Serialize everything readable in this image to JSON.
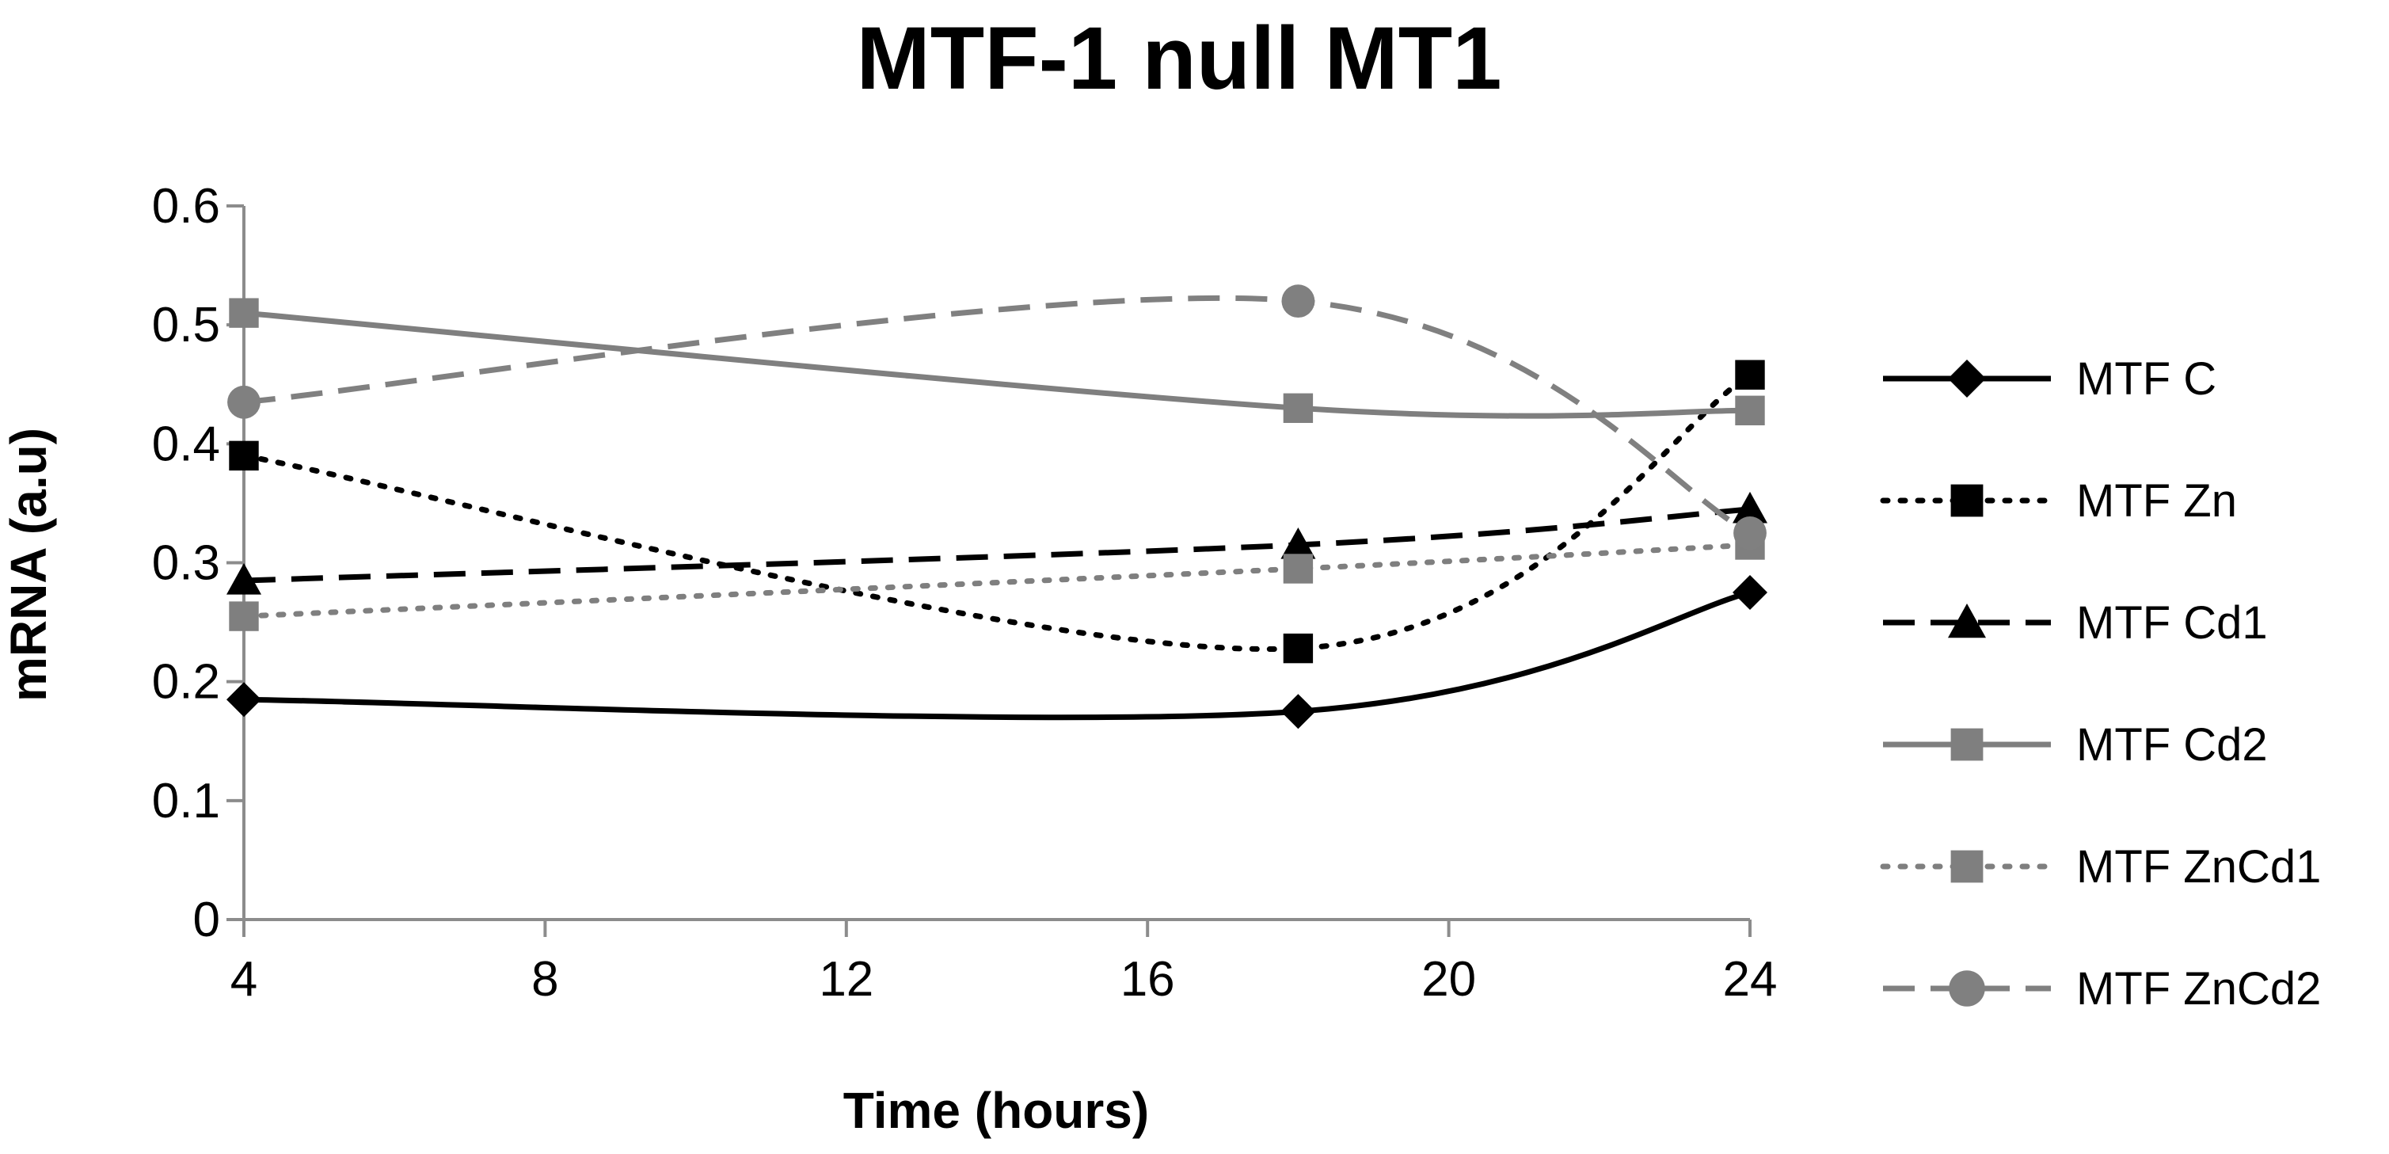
{
  "chart_data": {
    "type": "line",
    "title": "MTF-1 null MT1",
    "xlabel": "Time (hours)",
    "ylabel": "mRNA (a.u)",
    "xlim": [
      4,
      24
    ],
    "ylim": [
      0,
      0.6
    ],
    "xticks": [
      "4",
      "8",
      "12",
      "16",
      "20",
      "24"
    ],
    "yticks": [
      "0",
      "0.1",
      "0.2",
      "0.3",
      "0.4",
      "0.5",
      "0.6"
    ],
    "x": [
      4,
      18,
      24
    ],
    "grid": false,
    "smooth": true,
    "legend_position": "right",
    "series": [
      {
        "name": "MTF C",
        "values": [
          0.185,
          0.175,
          0.275
        ],
        "color": "#000000",
        "dash": "solid",
        "marker": "diamond"
      },
      {
        "name": "MTF Zn",
        "values": [
          0.39,
          0.228,
          0.458
        ],
        "color": "#000000",
        "dash": "dotted",
        "marker": "square"
      },
      {
        "name": "MTF Cd1",
        "values": [
          0.285,
          0.315,
          0.345
        ],
        "color": "#000000",
        "dash": "dashed",
        "marker": "triangle"
      },
      {
        "name": "MTF Cd2",
        "values": [
          0.51,
          0.43,
          0.428
        ],
        "color": "#7f7f7f",
        "dash": "solid",
        "marker": "square"
      },
      {
        "name": "MTF ZnCd1",
        "values": [
          0.255,
          0.295,
          0.315
        ],
        "color": "#7f7f7f",
        "dash": "dotted",
        "marker": "square"
      },
      {
        "name": "MTF ZnCd2",
        "values": [
          0.435,
          0.52,
          0.325
        ],
        "color": "#808080",
        "dash": "dashed",
        "marker": "circle"
      }
    ]
  }
}
